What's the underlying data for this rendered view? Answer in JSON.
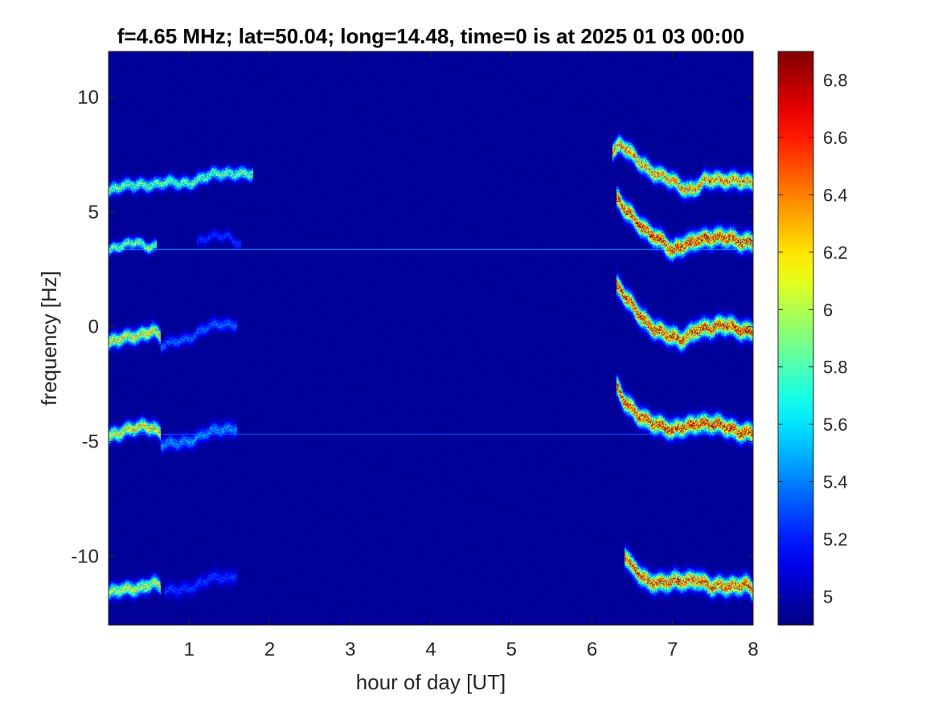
{
  "chart_data": {
    "type": "heatmap",
    "title": "f=4.65 MHz;  lat=50.04; long=14.48, time=0 is at 2025 01 03 00:00",
    "xlabel": "hour of day [UT]",
    "ylabel": "frequency [Hz]",
    "xlim": [
      0,
      8
    ],
    "ylim": [
      -13,
      12
    ],
    "xticks": [
      1,
      2,
      3,
      4,
      5,
      6,
      7,
      8
    ],
    "xtick_labels": [
      "1",
      "2",
      "3",
      "4",
      "5",
      "6",
      "7",
      "8"
    ],
    "yticks": [
      -10,
      -5,
      0,
      5,
      10
    ],
    "ytick_labels": [
      "-10",
      "-5",
      "0",
      "5",
      "10"
    ],
    "colormap": "jet",
    "clim": [
      4.9,
      6.9
    ],
    "colorbar_ticks": [
      5,
      5.2,
      5.4,
      5.6,
      5.8,
      6,
      6.2,
      6.4,
      6.6,
      6.8
    ],
    "colorbar_tick_labels": [
      "5",
      "5.2",
      "5.4",
      "5.6",
      "5.8",
      "6",
      "6.2",
      "6.4",
      "6.6",
      "6.8"
    ],
    "background_value": 4.95,
    "horizontal_lines": [
      {
        "y": 3.4,
        "x_range": [
          0,
          8
        ],
        "value": 5.45
      },
      {
        "y": -4.65,
        "x_range": [
          0,
          8
        ],
        "value": 5.35
      }
    ],
    "traces": [
      {
        "x": [
          0,
          0.2,
          0.4,
          0.6,
          0.9,
          1.2,
          1.45,
          1.6,
          1.8
        ],
        "y": [
          5.9,
          6.1,
          6.3,
          6.2,
          6.3,
          6.5,
          6.7,
          6.8,
          6.6
        ],
        "peak": 5.95,
        "width": 0.35
      },
      {
        "x": [
          0,
          0.2,
          0.35,
          0.45,
          0.6
        ],
        "y": [
          3.3,
          3.5,
          3.8,
          3.6,
          3.5
        ],
        "peak": 6.0,
        "width": 0.3
      },
      {
        "x": [
          1.1,
          1.3,
          1.5,
          1.65
        ],
        "y": [
          3.7,
          3.9,
          4.0,
          3.6
        ],
        "peak": 5.3,
        "width": 0.3
      },
      {
        "x": [
          0,
          0.15,
          0.3,
          0.45,
          0.55,
          0.65
        ],
        "y": [
          -0.7,
          -0.6,
          -0.4,
          -0.2,
          -0.1,
          -0.5
        ],
        "peak": 6.3,
        "width": 0.4
      },
      {
        "x": [
          0.65,
          0.8,
          1.0,
          1.2,
          1.4,
          1.6
        ],
        "y": [
          -0.9,
          -0.7,
          -0.4,
          -0.1,
          0.1,
          0.2
        ],
        "peak": 5.4,
        "width": 0.35
      },
      {
        "x": [
          0,
          0.15,
          0.3,
          0.45,
          0.55,
          0.65
        ],
        "y": [
          -4.8,
          -4.7,
          -4.4,
          -4.2,
          -4.4,
          -4.7
        ],
        "peak": 6.3,
        "width": 0.4
      },
      {
        "x": [
          0.65,
          0.8,
          1.0,
          1.2,
          1.4,
          1.6
        ],
        "y": [
          -5.2,
          -5.1,
          -4.9,
          -4.7,
          -4.5,
          -4.3
        ],
        "peak": 5.5,
        "width": 0.4
      },
      {
        "x": [
          0,
          0.2,
          0.4,
          0.55,
          0.65
        ],
        "y": [
          -11.6,
          -11.5,
          -11.3,
          -11.1,
          -11.4
        ],
        "peak": 6.2,
        "width": 0.4
      },
      {
        "x": [
          0.7,
          0.9,
          1.1,
          1.3,
          1.5,
          1.6
        ],
        "y": [
          -11.6,
          -11.4,
          -11.2,
          -11.0,
          -10.9,
          -10.7
        ],
        "peak": 5.3,
        "width": 0.4
      },
      {
        "x": [
          6.25,
          6.35,
          6.45,
          6.6,
          6.8,
          7.0,
          7.1,
          7.2,
          7.4,
          7.6,
          7.8,
          8.0
        ],
        "y": [
          7.6,
          7.9,
          7.6,
          7.2,
          6.7,
          6.3,
          6.1,
          6.0,
          6.4,
          6.3,
          6.5,
          6.3
        ],
        "peak": 6.55,
        "width": 0.45
      },
      {
        "x": [
          6.3,
          6.4,
          6.55,
          6.7,
          6.85,
          7.0,
          7.1,
          7.3,
          7.5,
          7.7,
          8.0
        ],
        "y": [
          5.6,
          5.1,
          4.6,
          4.2,
          3.8,
          3.2,
          3.5,
          3.9,
          3.8,
          3.9,
          3.7
        ],
        "peak": 6.8,
        "width": 0.5
      },
      {
        "x": [
          6.3,
          6.4,
          6.55,
          6.7,
          6.85,
          7.0,
          7.1,
          7.3,
          7.5,
          7.7,
          8.0
        ],
        "y": [
          1.8,
          1.3,
          0.7,
          0.2,
          -0.2,
          -0.5,
          -0.6,
          0.0,
          -0.1,
          0.1,
          -0.2
        ],
        "peak": 6.8,
        "width": 0.5
      },
      {
        "x": [
          6.3,
          6.4,
          6.55,
          6.7,
          6.85,
          7.0,
          7.1,
          7.3,
          7.5,
          7.7,
          8.0
        ],
        "y": [
          -2.6,
          -3.3,
          -3.8,
          -4.0,
          -4.3,
          -4.6,
          -4.4,
          -4.1,
          -4.3,
          -4.4,
          -4.6
        ],
        "peak": 6.8,
        "width": 0.5
      },
      {
        "x": [
          6.4,
          6.5,
          6.7,
          6.9,
          7.1,
          7.3,
          7.5,
          7.7,
          7.9,
          8.0
        ],
        "y": [
          -10.0,
          -10.5,
          -11.0,
          -11.2,
          -11.1,
          -10.9,
          -11.4,
          -11.3,
          -11.1,
          -11.5
        ],
        "peak": 6.7,
        "width": 0.5
      }
    ]
  }
}
